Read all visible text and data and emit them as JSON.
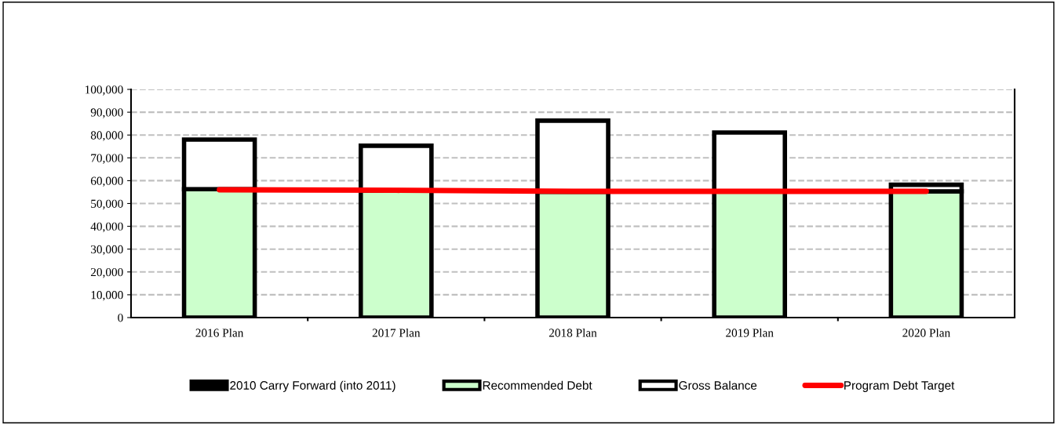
{
  "chart_data": {
    "type": "bar",
    "stacked": true,
    "categories": [
      "2016 Plan",
      "2017 Plan",
      "2018 Plan",
      "2019 Plan",
      "2020 Plan"
    ],
    "series": [
      {
        "name": "2010 Carry Forward (into 2011)",
        "color": "#000000",
        "values": [
          0,
          0,
          0,
          0,
          0
        ]
      },
      {
        "name": "Recommended Debt",
        "color": "#ccffcc",
        "values": [
          56300,
          55700,
          55200,
          55300,
          55300
        ]
      },
      {
        "name": "Gross Balance",
        "color": "#ffffff",
        "values": [
          21700,
          19600,
          31100,
          25800,
          2900
        ]
      },
      {
        "name": "Program Debt Target",
        "type": "line",
        "color": "#ff0000",
        "values": [
          56000,
          55800,
          55300,
          55300,
          55300
        ]
      }
    ],
    "ylim": [
      0,
      100000
    ],
    "yticks": [
      {
        "value": 0,
        "label": "0"
      },
      {
        "value": 10000,
        "label": "10,000"
      },
      {
        "value": 20000,
        "label": "20,000"
      },
      {
        "value": 30000,
        "label": "30,000"
      },
      {
        "value": 40000,
        "label": "40,000"
      },
      {
        "value": 50000,
        "label": "50,000"
      },
      {
        "value": 60000,
        "label": "60,000"
      },
      {
        "value": 70000,
        "label": "70,000"
      },
      {
        "value": 80000,
        "label": "80,000"
      },
      {
        "value": 90000,
        "label": "90,000"
      },
      {
        "value": 100000,
        "label": "100,000"
      }
    ],
    "grid": "y",
    "legend": "bottom",
    "line_style": "solid",
    "marker": "none"
  }
}
